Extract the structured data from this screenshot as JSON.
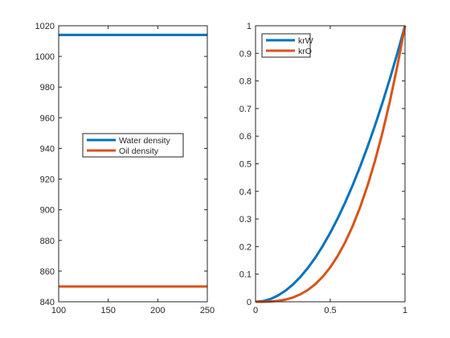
{
  "colors": {
    "blue": "#0072BD",
    "orange": "#D95319",
    "axis": "#262626"
  },
  "chart_data": [
    {
      "type": "line",
      "title": "",
      "xlabel": "",
      "ylabel": "",
      "xlim": [
        100,
        250
      ],
      "ylim": [
        840,
        1020
      ],
      "xticks": [
        100,
        150,
        200,
        250
      ],
      "yticks": [
        840,
        860,
        880,
        900,
        920,
        940,
        960,
        980,
        1000,
        1020
      ],
      "grid": false,
      "legend_position": "center-left",
      "series": [
        {
          "name": "Water density",
          "color": "#0072BD",
          "x": [
            100,
            250
          ],
          "y": [
            1014,
            1014
          ]
        },
        {
          "name": "Oil density",
          "color": "#D95319",
          "x": [
            100,
            250
          ],
          "y": [
            850,
            850
          ]
        }
      ]
    },
    {
      "type": "line",
      "title": "",
      "xlabel": "",
      "ylabel": "",
      "xlim": [
        0,
        1
      ],
      "ylim": [
        0,
        1
      ],
      "xticks": [
        0,
        0.5,
        1
      ],
      "yticks": [
        0,
        0.1,
        0.2,
        0.3,
        0.4,
        0.5,
        0.6,
        0.7,
        0.8,
        0.9,
        1
      ],
      "grid": false,
      "legend_position": "top-left",
      "series": [
        {
          "name": "krW",
          "color": "#0072BD",
          "x": [
            0,
            0.05,
            0.1,
            0.15,
            0.2,
            0.25,
            0.3,
            0.35,
            0.4,
            0.45,
            0.5,
            0.55,
            0.6,
            0.65,
            0.7,
            0.75,
            0.8,
            0.85,
            0.9,
            0.95,
            1
          ],
          "y": [
            0,
            0.0025,
            0.01,
            0.0225,
            0.04,
            0.0625,
            0.09,
            0.1225,
            0.16,
            0.2025,
            0.25,
            0.3025,
            0.36,
            0.4225,
            0.49,
            0.5625,
            0.64,
            0.7225,
            0.81,
            0.9025,
            1
          ]
        },
        {
          "name": "krO",
          "color": "#D95319",
          "x": [
            0,
            0.05,
            0.1,
            0.15,
            0.2,
            0.25,
            0.3,
            0.35,
            0.4,
            0.45,
            0.5,
            0.55,
            0.6,
            0.65,
            0.7,
            0.75,
            0.8,
            0.85,
            0.9,
            0.95,
            1
          ],
          "y": [
            0,
            0.0001,
            0.001,
            0.0034,
            0.008,
            0.0156,
            0.027,
            0.0429,
            0.064,
            0.0911,
            0.125,
            0.1664,
            0.216,
            0.2746,
            0.343,
            0.4219,
            0.512,
            0.6141,
            0.729,
            0.8574,
            1
          ]
        }
      ]
    }
  ]
}
